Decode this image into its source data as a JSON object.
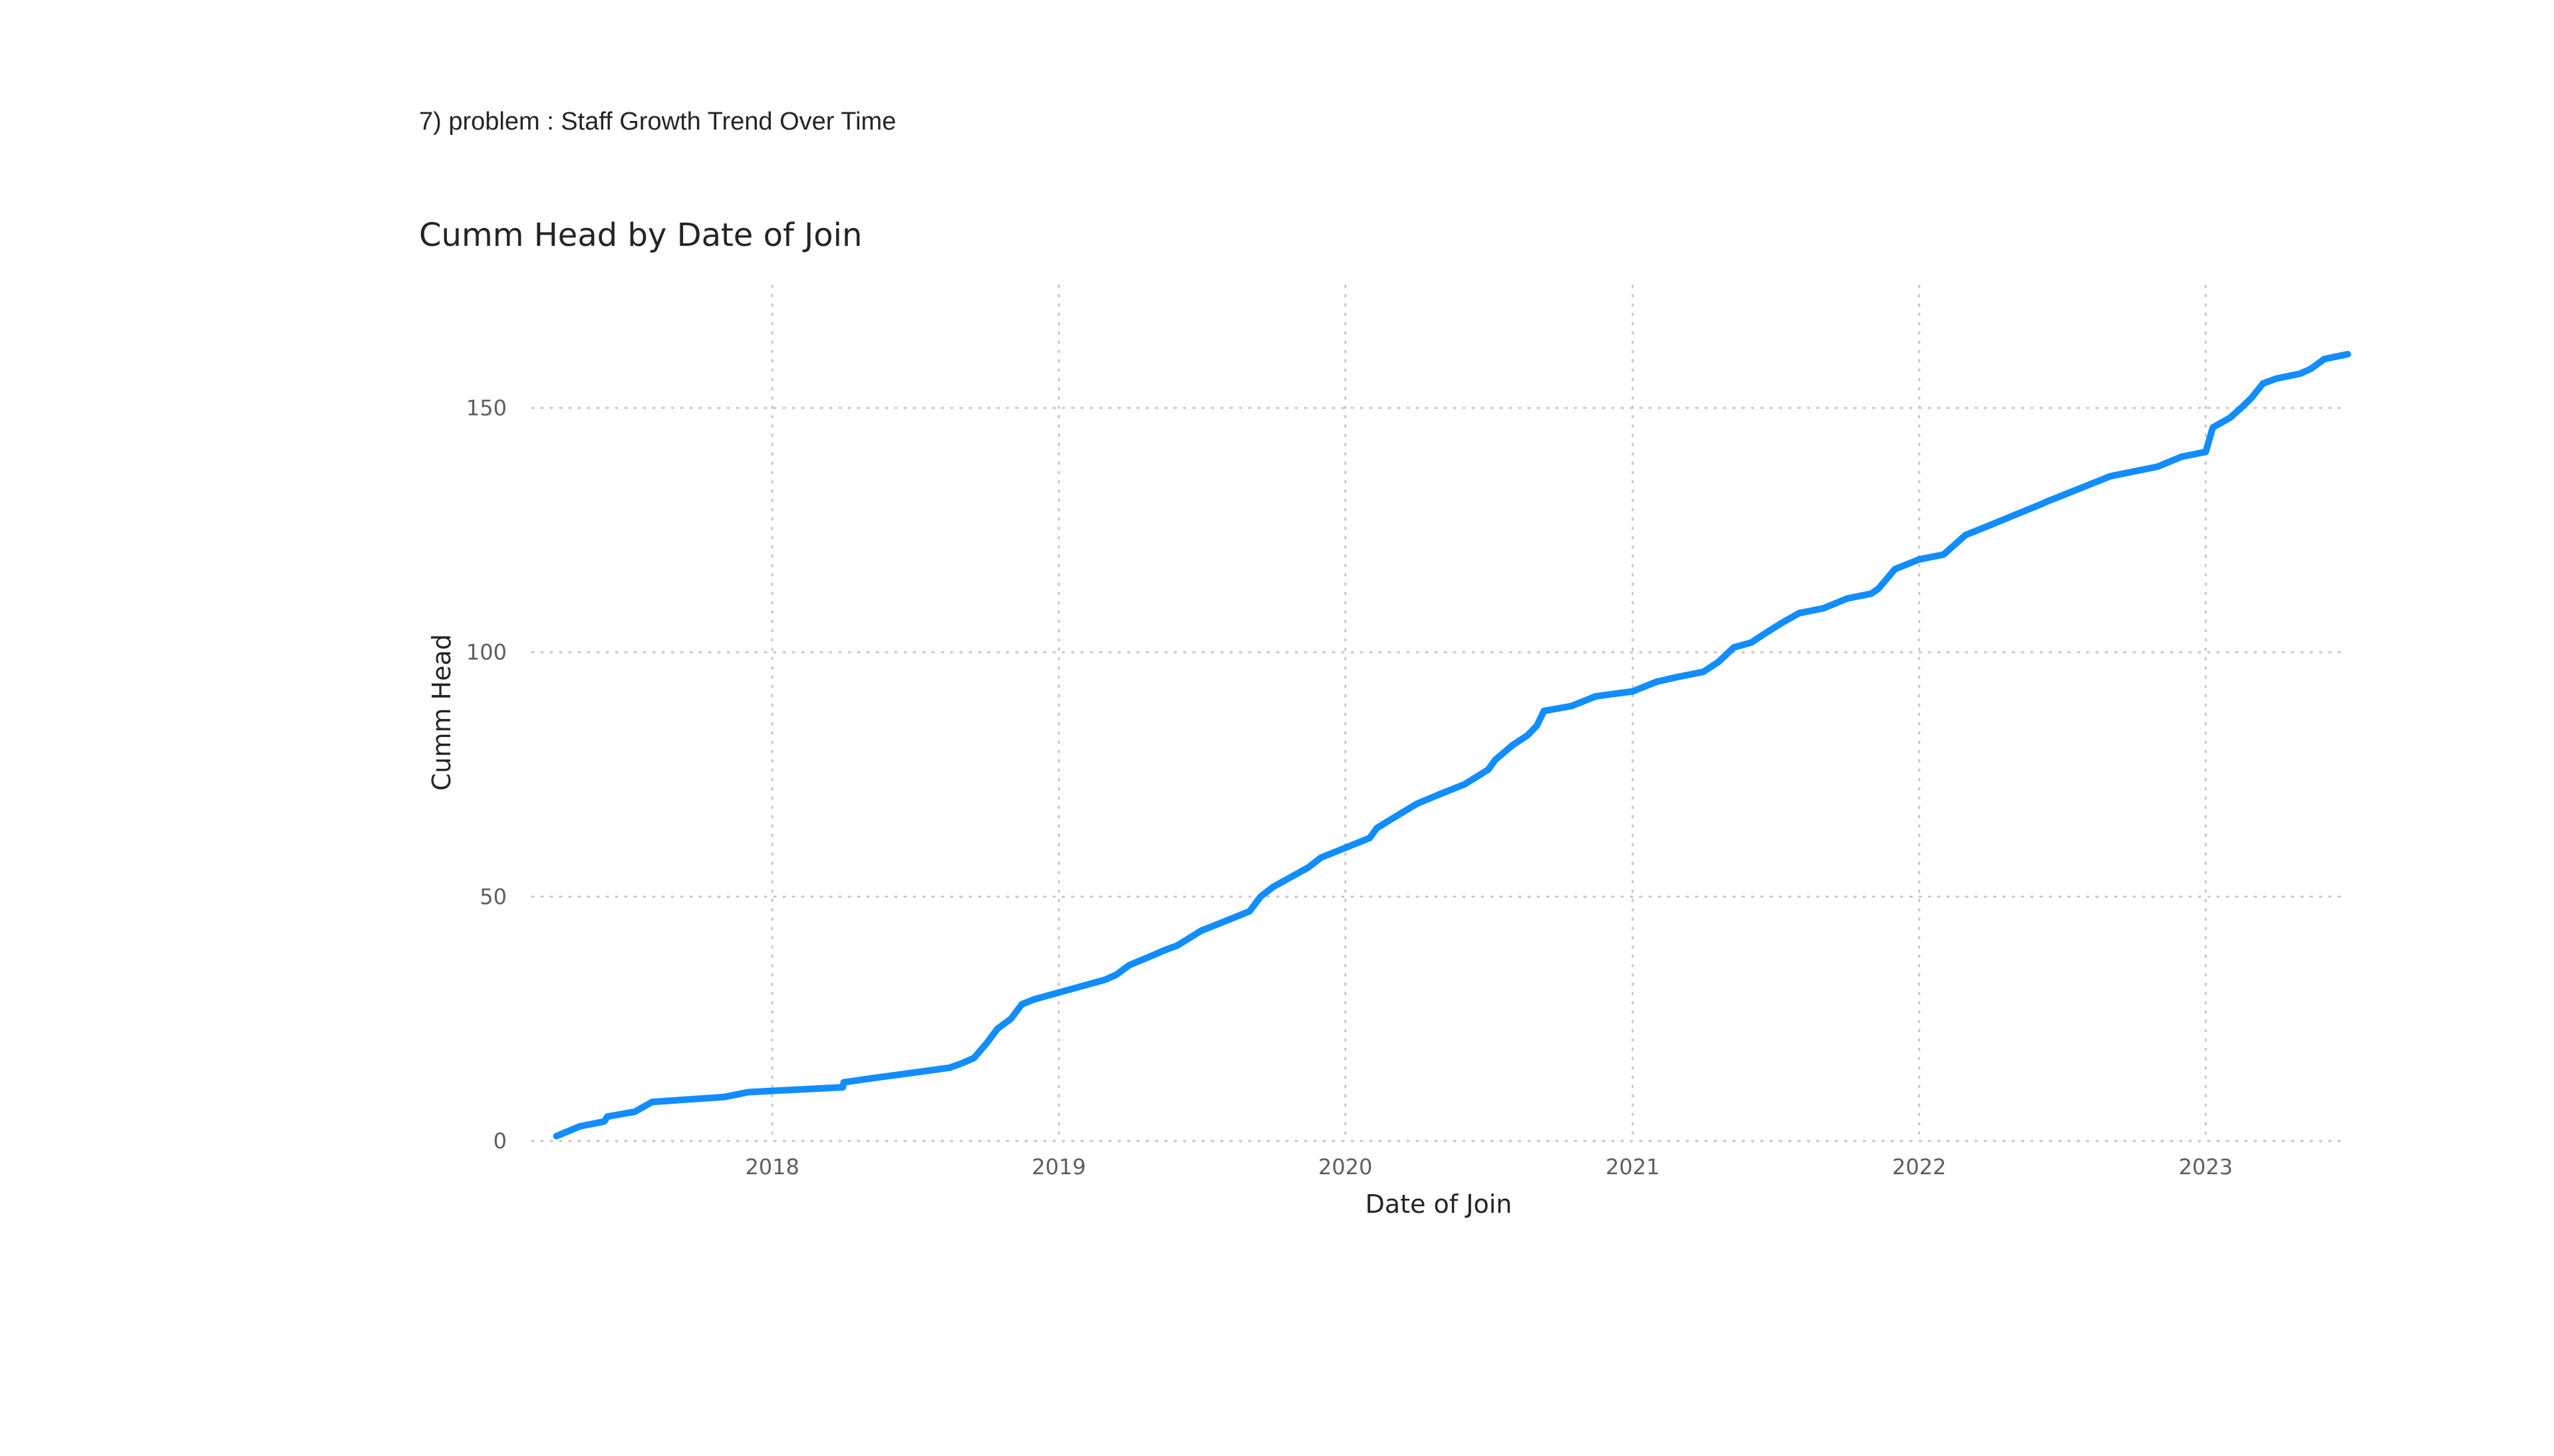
{
  "header": {
    "problem_label": "7) problem : Staff Growth Trend Over Time"
  },
  "colors": {
    "line": "#118DFF",
    "grid": "#c8c6c4",
    "text": "#605e5c"
  },
  "chart_data": {
    "type": "line",
    "title": "Cumm Head by Date of Join",
    "xlabel": "Date of Join",
    "ylabel": "Cumm Head",
    "x_ticks": [
      "2018",
      "2019",
      "2020",
      "2021",
      "2022",
      "2023"
    ],
    "y_ticks": [
      0,
      50,
      100,
      150
    ],
    "xlim": [
      "2017-03-01",
      "2023-07-01"
    ],
    "ylim": [
      0,
      175
    ],
    "grid": true,
    "series": [
      {
        "x": [
          "2017-04-01",
          "2017-05-01",
          "2017-06-01",
          "2017-06-05",
          "2017-07-10",
          "2017-08-01",
          "2017-11-01",
          "2017-12-01",
          "2018-04-01",
          "2018-04-02",
          "2018-05-15",
          "2018-07-01",
          "2018-08-15",
          "2018-09-01",
          "2018-09-15",
          "2018-10-01",
          "2018-10-15",
          "2018-11-01",
          "2018-11-15",
          "2018-12-01",
          "2019-03-01",
          "2019-03-15",
          "2019-04-01",
          "2019-05-01",
          "2019-05-15",
          "2019-06-01",
          "2019-07-01",
          "2019-08-01",
          "2019-09-01",
          "2019-09-15",
          "2019-10-01",
          "2019-11-15",
          "2019-12-01",
          "2020-01-01",
          "2020-02-01",
          "2020-02-10",
          "2020-03-01",
          "2020-04-01",
          "2020-05-01",
          "2020-06-01",
          "2020-07-01",
          "2020-07-10",
          "2020-08-01",
          "2020-08-20",
          "2020-09-01",
          "2020-09-10",
          "2020-10-15",
          "2020-11-15",
          "2021-01-01",
          "2021-02-01",
          "2021-03-01",
          "2021-04-01",
          "2021-04-20",
          "2021-05-10",
          "2021-06-01",
          "2021-06-20",
          "2021-07-10",
          "2021-08-01",
          "2021-09-01",
          "2021-10-01",
          "2021-11-01",
          "2021-11-10",
          "2021-12-01",
          "2022-01-01",
          "2022-02-01",
          "2022-02-15",
          "2022-03-01",
          "2022-04-01",
          "2022-05-01",
          "2022-06-01",
          "2022-06-15",
          "2022-07-01",
          "2022-08-01",
          "2022-09-01",
          "2022-11-01",
          "2022-12-01",
          "2023-01-01",
          "2023-01-10",
          "2023-02-01",
          "2023-02-15",
          "2023-02-28",
          "2023-03-15",
          "2023-04-01",
          "2023-05-01",
          "2023-05-15",
          "2023-06-01",
          "2023-07-01"
        ],
        "y": [
          1,
          3,
          4,
          5,
          6,
          8,
          9,
          10,
          11,
          12,
          13,
          14,
          15,
          16,
          17,
          20,
          23,
          25,
          28,
          29,
          33,
          34,
          36,
          38,
          39,
          40,
          43,
          45,
          47,
          50,
          52,
          56,
          58,
          60,
          62,
          64,
          66,
          69,
          71,
          73,
          76,
          78,
          81,
          83,
          85,
          88,
          89,
          91,
          92,
          94,
          95,
          96,
          98,
          101,
          102,
          104,
          106,
          108,
          109,
          111,
          112,
          113,
          117,
          119,
          120,
          122,
          124,
          126,
          128,
          130,
          131,
          132,
          134,
          136,
          138,
          140,
          141,
          146,
          148,
          150,
          152,
          155,
          156,
          157,
          158,
          160,
          161
        ]
      }
    ]
  }
}
